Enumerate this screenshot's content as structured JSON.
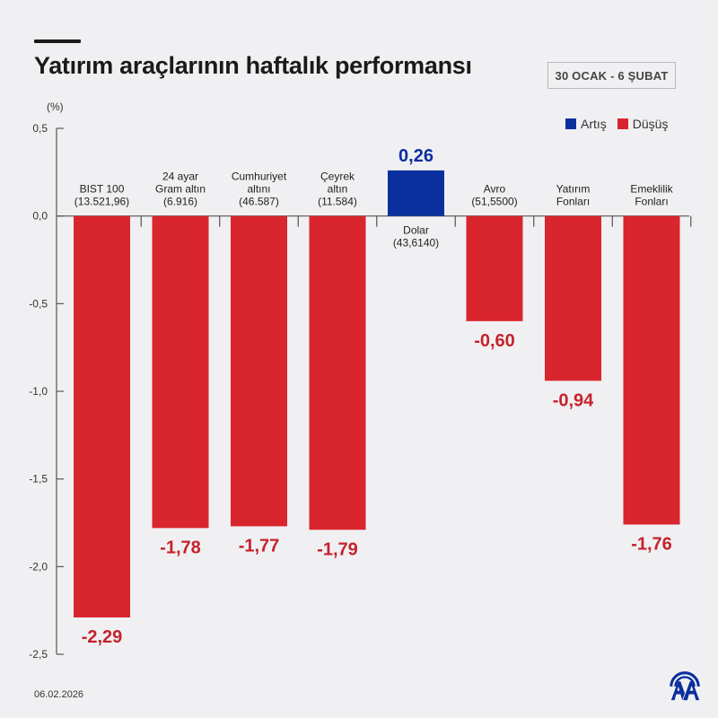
{
  "header": {
    "title": "Yatırım araçlarının haftalık performansı",
    "date_range": "30 OCAK - 6 ŞUBAT"
  },
  "legend": [
    {
      "label": "Artış",
      "color": "#0a2f9e"
    },
    {
      "label": "Düşüş",
      "color": "#d9262e"
    }
  ],
  "footer": {
    "date": "06.02.2026",
    "logo": "aa-logo-icon"
  },
  "colors": {
    "increase": "#0a2f9e",
    "decrease": "#d9262e",
    "decrease_label": "#c5222c",
    "increase_label": "#0a2f9e",
    "axis": "#555555"
  },
  "chart_data": {
    "type": "bar",
    "title": "Yatırım araçlarının haftalık performansı",
    "ylabel": "(%)",
    "xlabel": "",
    "ylim": [
      -2.5,
      0.5
    ],
    "yticks": [
      0.5,
      0.0,
      -0.5,
      -1.0,
      -1.5,
      -2.0,
      -2.5
    ],
    "ytick_labels": [
      "0,5",
      "0,0",
      "-0,5",
      "-1,0",
      "-1,5",
      "-2,0",
      "-2,5"
    ],
    "grid": false,
    "legend_position": "top-right",
    "categories": [
      {
        "name": "BIST 100",
        "lines": [
          "BIST 100",
          "(13.521,96)"
        ]
      },
      {
        "name": "24 ayar Gram altın",
        "lines": [
          "24 ayar",
          "Gram altın",
          "(6.916)"
        ]
      },
      {
        "name": "Cumhuriyet altını",
        "lines": [
          "Cumhuriyet",
          "altını",
          "(46.587)"
        ]
      },
      {
        "name": "Çeyrek altın",
        "lines": [
          "Çeyrek",
          "altın",
          "(11.584)"
        ]
      },
      {
        "name": "Dolar",
        "lines": [
          "Dolar",
          "(43,6140)"
        ]
      },
      {
        "name": "Avro",
        "lines": [
          "Avro",
          "(51,5500)"
        ]
      },
      {
        "name": "Yatırım Fonları",
        "lines": [
          "Yatırım",
          "Fonları"
        ]
      },
      {
        "name": "Emeklilik Fonları",
        "lines": [
          "Emeklilik",
          "Fonları"
        ]
      }
    ],
    "values": [
      -2.29,
      -1.78,
      -1.77,
      -1.79,
      0.26,
      -0.6,
      -0.94,
      -1.76
    ],
    "value_labels": [
      "-2,29",
      "-1,78",
      "-1,77",
      "-1,79",
      "0,26",
      "-0,60",
      "-0,94",
      "-1,76"
    ]
  }
}
